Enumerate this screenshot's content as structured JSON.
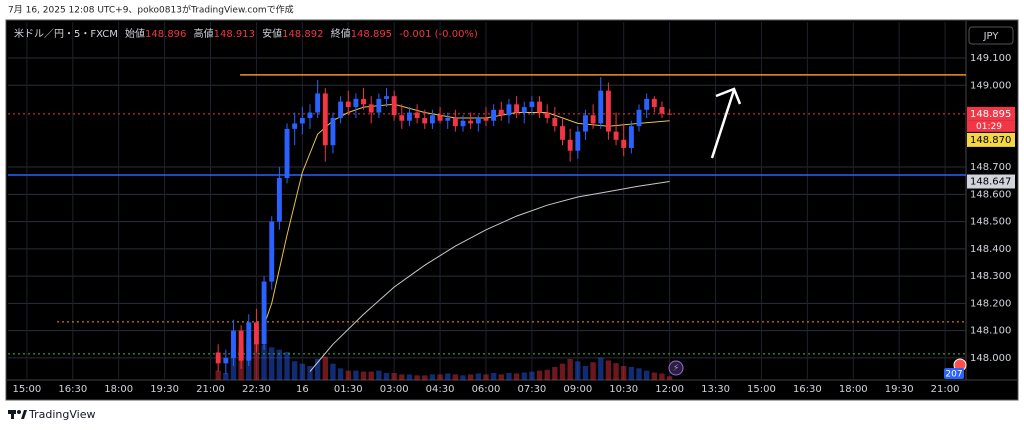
{
  "header": {
    "caption": "7月 16, 2025 12:08 UTC+9、poko0813がTradingView.comで作成"
  },
  "chart_data": {
    "type": "candlestick",
    "title": "米ドル／円・5・FXCM",
    "ohlc_legend": [
      {
        "label": "始値",
        "value": 148.896
      },
      {
        "label": "高値",
        "value": 148.913
      },
      {
        "label": "安値",
        "value": 148.892
      },
      {
        "label": "終値",
        "value": 148.895
      }
    ],
    "change": "-0.001 (-0.00%)",
    "currency": "JPY",
    "up_color": "#2962ff",
    "down_color": "#f23645",
    "x": [
      375,
      390,
      405,
      420,
      435,
      450,
      465,
      480,
      495,
      510,
      525,
      540,
      555,
      570,
      585,
      600,
      615,
      630,
      645,
      660,
      675,
      690,
      705,
      720,
      735,
      750,
      765,
      780,
      795,
      810,
      825,
      840,
      855,
      870,
      885,
      900,
      915,
      930,
      945,
      960,
      975,
      990,
      1005,
      1020,
      1035,
      1050,
      1065,
      1080,
      1095,
      1110,
      1125,
      1140,
      1155,
      1170,
      1185,
      1200,
      1215,
      1230,
      1245,
      1260
    ],
    "open": [
      148.02,
      147.98,
      148.0,
      148.1,
      147.99,
      148.13,
      148.05,
      148.28,
      148.5,
      148.66,
      148.84,
      148.86,
      148.88,
      148.9,
      148.97,
      148.78,
      148.88,
      148.94,
      148.92,
      148.95,
      148.93,
      148.9,
      148.95,
      148.96,
      148.89,
      148.87,
      148.9,
      148.88,
      148.86,
      148.89,
      148.87,
      148.88,
      148.85,
      148.87,
      148.86,
      148.88,
      148.87,
      148.91,
      148.89,
      148.93,
      148.9,
      148.92,
      148.94,
      148.9,
      148.88,
      148.85,
      148.8,
      148.76,
      148.83,
      148.89,
      148.86,
      148.98,
      148.83,
      148.8,
      148.77,
      148.85,
      148.91,
      148.95,
      148.92,
      148.896
    ],
    "high": [
      148.05,
      148.03,
      148.14,
      148.12,
      148.16,
      148.18,
      148.3,
      148.52,
      148.7,
      148.86,
      148.9,
      148.92,
      148.93,
      149.02,
      148.99,
      148.9,
      148.96,
      148.98,
      148.97,
      148.99,
      148.96,
      148.97,
      148.99,
      148.98,
      148.93,
      148.92,
      148.93,
      148.91,
      148.91,
      148.92,
      148.9,
      148.91,
      148.89,
      148.9,
      148.89,
      148.92,
      148.93,
      148.94,
      148.95,
      148.96,
      148.94,
      148.96,
      148.96,
      148.93,
      148.92,
      148.88,
      148.84,
      148.85,
      148.91,
      148.93,
      149.03,
      149.01,
      148.9,
      148.86,
      148.87,
      148.93,
      148.97,
      148.96,
      148.94,
      148.913
    ],
    "low": [
      147.95,
      147.94,
      147.97,
      147.96,
      147.97,
      148.02,
      148.03,
      148.25,
      148.47,
      148.64,
      148.78,
      148.82,
      148.84,
      148.88,
      148.72,
      148.75,
      148.86,
      148.89,
      148.88,
      148.91,
      148.86,
      148.88,
      148.92,
      148.87,
      148.84,
      148.85,
      148.86,
      148.84,
      148.84,
      148.86,
      148.84,
      148.83,
      148.83,
      148.84,
      148.83,
      148.85,
      148.85,
      148.87,
      148.86,
      148.88,
      148.86,
      148.89,
      148.88,
      148.86,
      148.83,
      148.78,
      148.72,
      148.73,
      148.8,
      148.84,
      148.84,
      148.8,
      148.78,
      148.74,
      148.75,
      148.83,
      148.88,
      148.9,
      148.88,
      148.892
    ],
    "close": [
      147.98,
      148.0,
      148.1,
      147.99,
      148.13,
      148.05,
      148.28,
      148.5,
      148.66,
      148.84,
      148.86,
      148.88,
      148.9,
      148.97,
      148.78,
      148.88,
      148.94,
      148.92,
      148.95,
      148.93,
      148.9,
      148.95,
      148.96,
      148.89,
      148.87,
      148.9,
      148.88,
      148.86,
      148.89,
      148.87,
      148.88,
      148.85,
      148.87,
      148.86,
      148.88,
      148.87,
      148.91,
      148.89,
      148.93,
      148.9,
      148.92,
      148.94,
      148.9,
      148.88,
      148.85,
      148.8,
      148.76,
      148.83,
      148.89,
      148.86,
      148.98,
      148.83,
      148.8,
      148.77,
      148.85,
      148.91,
      148.95,
      148.92,
      148.896,
      148.895
    ],
    "volume": [
      20,
      15,
      60,
      70,
      90,
      80,
      75,
      70,
      65,
      60,
      40,
      35,
      30,
      45,
      50,
      35,
      25,
      20,
      20,
      18,
      18,
      20,
      15,
      15,
      12,
      12,
      10,
      10,
      12,
      12,
      14,
      12,
      10,
      12,
      14,
      12,
      15,
      12,
      15,
      14,
      16,
      18,
      20,
      22,
      28,
      35,
      45,
      40,
      30,
      38,
      48,
      42,
      36,
      30,
      28,
      25,
      20,
      16,
      14,
      8
    ],
    "moving_averages": [
      {
        "color": "#e8c34a",
        "x": [
          465,
          480,
          510,
          540,
          570,
          600,
          630,
          660,
          720,
          780,
          840,
          900,
          960,
          1020,
          1080,
          1140,
          1200,
          1260
        ],
        "values": [
          148.12,
          148.2,
          148.45,
          148.68,
          148.82,
          148.87,
          148.9,
          148.92,
          148.93,
          148.9,
          148.88,
          148.88,
          148.9,
          148.9,
          148.86,
          148.85,
          148.86,
          148.87
        ]
      },
      {
        "color": "#c8c8c8",
        "x": [
          555,
          600,
          660,
          720,
          780,
          840,
          900,
          960,
          1020,
          1080,
          1140,
          1200,
          1260
        ],
        "values": [
          147.95,
          148.05,
          148.16,
          148.26,
          148.34,
          148.41,
          148.47,
          148.52,
          148.56,
          148.59,
          148.61,
          148.63,
          148.647
        ]
      }
    ],
    "levels": [
      {
        "value": 149.038,
        "color": "#f7931a",
        "style": "solid",
        "x_start": 418
      },
      {
        "value": 148.671,
        "color": "#2962ff",
        "style": "solid"
      },
      {
        "value": 148.132,
        "color": "#f7931a",
        "style": "dotted",
        "x_start": 59
      },
      {
        "value": 148.015,
        "color": "#4caf50",
        "style": "dotted"
      },
      {
        "value": 148.895,
        "color": "#f23645",
        "style": "dotted"
      }
    ],
    "price_labels": [
      {
        "value": 148.895,
        "color": "#f23645",
        "text_color": "#ffffff"
      },
      {
        "value": 148.87,
        "label": "148.870",
        "color": "#f5d742",
        "text_color": "#000000"
      },
      {
        "value": 148.647,
        "color": "#d1d4dc",
        "text_color": "#000000"
      }
    ],
    "countdown": "01:29",
    "badge": 207,
    "xlim": [
      -37,
      1841
    ],
    "xticks": [
      {
        "value": 0,
        "label": "15:00"
      },
      {
        "value": 90,
        "label": "16:30"
      },
      {
        "value": 180,
        "label": "18:00"
      },
      {
        "value": 270,
        "label": "19:30"
      },
      {
        "value": 360,
        "label": "21:00"
      },
      {
        "value": 450,
        "label": "22:30"
      },
      {
        "value": 540,
        "label": "16"
      },
      {
        "value": 630,
        "label": "01:30"
      },
      {
        "value": 720,
        "label": "03:00"
      },
      {
        "value": 810,
        "label": "04:30"
      },
      {
        "value": 900,
        "label": "06:00"
      },
      {
        "value": 990,
        "label": "07:30"
      },
      {
        "value": 1080,
        "label": "09:00"
      },
      {
        "value": 1170,
        "label": "10:30"
      },
      {
        "value": 1260,
        "label": "12:00"
      },
      {
        "value": 1350,
        "label": "13:30"
      },
      {
        "value": 1440,
        "label": "15:00"
      },
      {
        "value": 1530,
        "label": "16:30"
      },
      {
        "value": 1620,
        "label": "18:00"
      },
      {
        "value": 1710,
        "label": "19:30"
      },
      {
        "value": 1800,
        "label": "21:00"
      }
    ],
    "ylim": [
      147.919,
      149.232
    ],
    "yticks": [
      {
        "value": 149.1,
        "label": "149.100"
      },
      {
        "value": 149.0,
        "label": "149.000"
      },
      {
        "value": 148.7,
        "label": "148.700"
      },
      {
        "value": 148.6,
        "label": "148.600"
      },
      {
        "value": 148.5,
        "label": "148.500"
      },
      {
        "value": 148.4,
        "label": "148.400"
      },
      {
        "value": 148.3,
        "label": "148.300"
      },
      {
        "value": 148.2,
        "label": "148.200"
      },
      {
        "value": 148.1,
        "label": "148.100"
      },
      {
        "value": 148.0,
        "label": "148.000"
      }
    ],
    "grid": true
  },
  "footer": {
    "brand": "TradingView"
  }
}
